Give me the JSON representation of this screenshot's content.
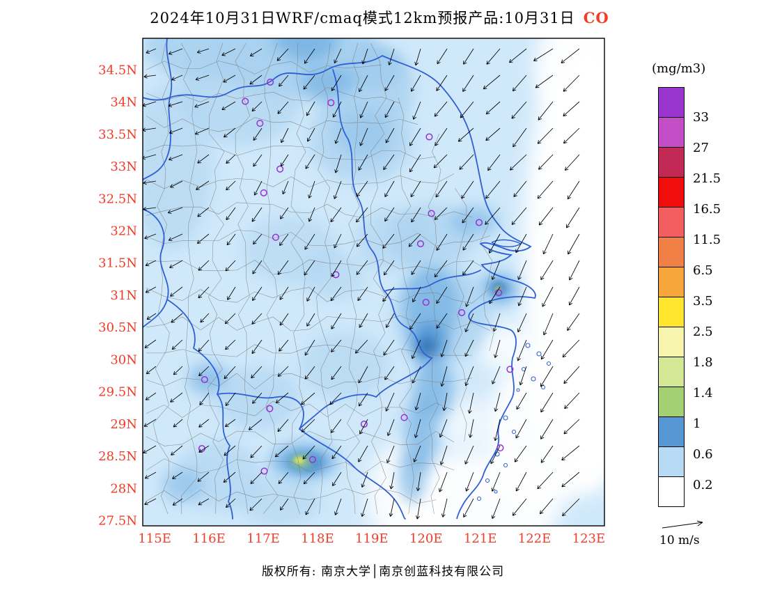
{
  "title": {
    "text": "2024年10月31日WRF/cmaq模式12km预报产品:10月31日",
    "species": "CO"
  },
  "axes": {
    "y_ticks": [
      "34.5N",
      "34N",
      "33.5N",
      "33N",
      "32.5N",
      "32N",
      "31.5N",
      "31N",
      "30.5N",
      "30N",
      "29.5N",
      "29N",
      "28.5N",
      "28N",
      "27.5N"
    ],
    "x_ticks": [
      "115E",
      "116E",
      "117E",
      "118E",
      "119E",
      "120E",
      "121E",
      "122E",
      "123E"
    ]
  },
  "legend": {
    "unit_label": "(mg/m3)",
    "tick_labels": [
      "33",
      "27",
      "21.5",
      "16.5",
      "11.5",
      "6.5",
      "3.5",
      "2.5",
      "1.8",
      "1.4",
      "1",
      "0.6",
      "0.2"
    ],
    "segment_colors_top_to_bottom": [
      "#9a35cf",
      "#c44ec6",
      "#c22a55",
      "#f20d0d",
      "#f25f5e",
      "#f08045",
      "#f7a63c",
      "#ffe52e",
      "#f7f4ad",
      "#d4e795",
      "#a2d072",
      "#5697d4",
      "#b7dbf4",
      "#ffffff"
    ]
  },
  "wind_reference": {
    "label": "10 m/s"
  },
  "footer": {
    "text": "版权所有: 南京大学│南京创蓝科技有限公司"
  },
  "colors": {
    "axis_label": "#f23b28",
    "species": "#f23b28",
    "province_border": "#2f5fd2",
    "coastline": "#2f5fd2",
    "county_border": "#7a7a7a",
    "marker": "#9a2fd6",
    "map_base": "#cfe8fa",
    "frame": "#000000",
    "blob_palette": {
      "l2": "#aad2f0",
      "l3": "#79b4e4",
      "l4": "#4f93d2",
      "l5": "#3878b8",
      "grn": "#a6d47a",
      "yel": "#f0ea52"
    }
  },
  "chart_data": {
    "type": "heatmap",
    "title": "2024年10月31日WRF/cmaq模式12km预报产品:10月31日 CO",
    "units": "mg/m3",
    "extent": {
      "lon": [
        114.78,
        123.29
      ],
      "lat": [
        27.42,
        34.99
      ]
    },
    "levels": [
      0.2,
      0.6,
      1,
      1.4,
      1.8,
      2.5,
      3.5,
      6.5,
      11.5,
      16.5,
      21.5,
      27,
      33
    ],
    "level_colors_low_to_high": [
      "#ffffff",
      "#b7dbf4",
      "#5697d4",
      "#a2d072",
      "#d4e795",
      "#f7f4ad",
      "#ffe52e",
      "#f7a63c",
      "#f08045",
      "#f25f5e",
      "#f20d0d",
      "#c22a55",
      "#c44ec6",
      "#9a35cf"
    ],
    "background_band": "0.2-0.6 mg/m3 over most land, <0.2 over open sea",
    "wind": {
      "reference_speed": "10 m/s",
      "prevailing": "northeasterly (arrows point southwest)"
    },
    "fill_blobs": [
      [
        "l2",
        115.9,
        34.85,
        85,
        45,
        0.9
      ],
      [
        "l2",
        117.6,
        34.75,
        120,
        60,
        0.95
      ],
      [
        "l3",
        117.75,
        34.9,
        50,
        26,
        0.9
      ],
      [
        "l3",
        119.05,
        34.5,
        40,
        30,
        0.85
      ],
      [
        "l2",
        118.9,
        34.2,
        70,
        60,
        0.8
      ],
      [
        "l2",
        116.6,
        34.2,
        90,
        80,
        0.6
      ],
      [
        "l3",
        118.2,
        34.3,
        40,
        26,
        0.7
      ],
      [
        "l3",
        118.85,
        33.5,
        42,
        34,
        0.9
      ],
      [
        "l2",
        118.8,
        33.45,
        75,
        65,
        0.7
      ],
      [
        "l2",
        115.3,
        33.0,
        60,
        120,
        0.5
      ],
      [
        "l2",
        117.5,
        31.7,
        70,
        50,
        0.45
      ],
      [
        "l2",
        119.4,
        31.85,
        55,
        45,
        0.55
      ],
      [
        "l2",
        120.1,
        31.9,
        60,
        48,
        0.7
      ],
      [
        "l3",
        120.9,
        32.15,
        34,
        22,
        0.6
      ],
      [
        "l2",
        118.3,
        31.3,
        45,
        35,
        0.5
      ],
      [
        "l3",
        121.35,
        31.1,
        28,
        22,
        0.95
      ],
      [
        "l5",
        121.33,
        31.11,
        11,
        9,
        0.95
      ],
      [
        "yel",
        121.33,
        31.1,
        4,
        3,
        0.9
      ],
      [
        "l2",
        120.3,
        30.7,
        70,
        70,
        0.75
      ],
      [
        "l3",
        120.1,
        30.85,
        40,
        55,
        0.8
      ],
      [
        "l4",
        120.05,
        30.25,
        26,
        30,
        0.9
      ],
      [
        "l5",
        120.02,
        30.2,
        12,
        13,
        0.9
      ],
      [
        "l3",
        120.15,
        29.55,
        28,
        45,
        0.8
      ],
      [
        "l3",
        119.92,
        28.85,
        24,
        55,
        0.75
      ],
      [
        "l3",
        119.75,
        28.2,
        20,
        40,
        0.7
      ],
      [
        "l3",
        116.0,
        29.7,
        30,
        22,
        0.7
      ],
      [
        "l2",
        116.9,
        29.4,
        60,
        45,
        0.6
      ],
      [
        "l2",
        118.5,
        29.9,
        65,
        50,
        0.5
      ],
      [
        "l3",
        117.75,
        28.42,
        48,
        26,
        0.9
      ],
      [
        "l4",
        117.78,
        28.4,
        27,
        15,
        0.95
      ],
      [
        "grn",
        117.7,
        28.42,
        14,
        8,
        0.95
      ],
      [
        "yel",
        117.66,
        28.44,
        7,
        4,
        0.95
      ],
      [
        "l2",
        116.2,
        28.2,
        60,
        50,
        0.55
      ],
      [
        "l3",
        115.5,
        28.05,
        30,
        25,
        0.5
      ],
      [
        "l2",
        117.3,
        27.8,
        60,
        35,
        0.5
      ]
    ],
    "white_blobs": [
      [
        123.0,
        31.5,
        95,
        330,
        1
      ],
      [
        122.9,
        34.55,
        70,
        85,
        0.95
      ],
      [
        122.2,
        28.9,
        85,
        110,
        0.95
      ],
      [
        120.9,
        27.7,
        120,
        80,
        0.95
      ],
      [
        119.6,
        27.85,
        55,
        80,
        0.85
      ],
      [
        120.7,
        29.0,
        40,
        40,
        0.6
      ],
      [
        121.5,
        30.2,
        45,
        35,
        0.8
      ]
    ],
    "city_markers": [
      [
        117.13,
        34.31
      ],
      [
        116.67,
        34.01
      ],
      [
        116.94,
        33.67
      ],
      [
        118.25,
        33.99
      ],
      [
        120.06,
        33.46
      ],
      [
        117.31,
        32.96
      ],
      [
        117.01,
        32.59
      ],
      [
        120.1,
        32.27
      ],
      [
        120.98,
        32.13
      ],
      [
        119.9,
        31.8
      ],
      [
        117.23,
        31.9
      ],
      [
        118.34,
        31.32
      ],
      [
        120.0,
        30.89
      ],
      [
        120.66,
        30.73
      ],
      [
        121.34,
        31.04
      ],
      [
        121.55,
        29.85
      ],
      [
        115.92,
        29.69
      ],
      [
        117.12,
        29.24
      ],
      [
        118.86,
        29.0
      ],
      [
        119.6,
        29.1
      ],
      [
        115.87,
        28.62
      ],
      [
        117.91,
        28.45
      ],
      [
        117.02,
        28.27
      ],
      [
        121.37,
        28.63
      ]
    ]
  }
}
